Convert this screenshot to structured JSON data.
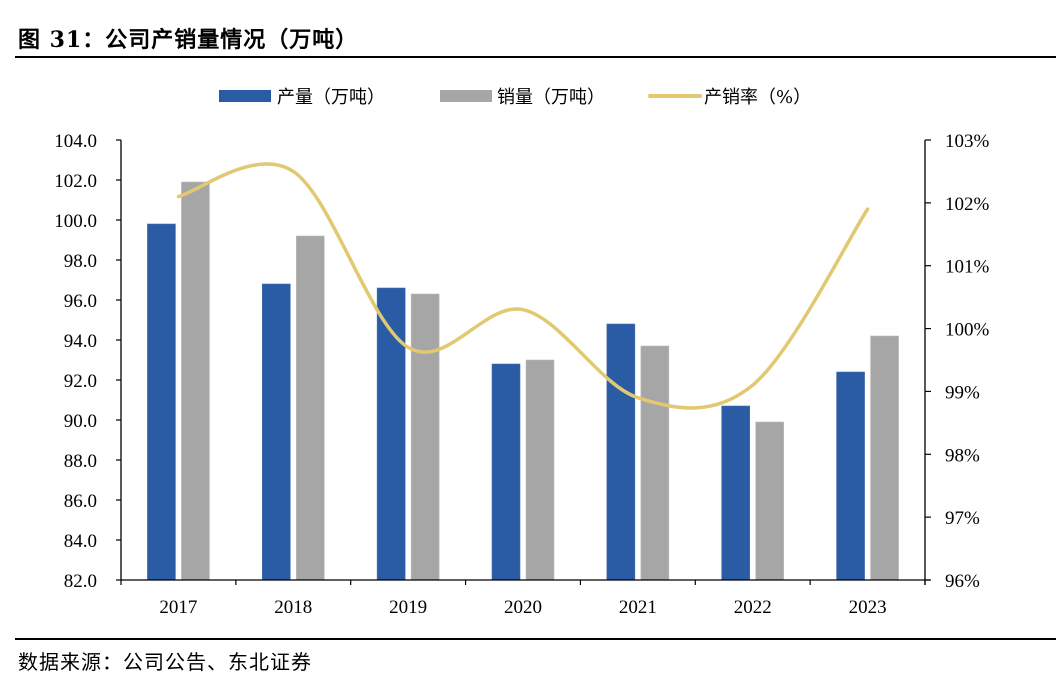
{
  "header": {
    "title": "图 31：公司产销量情况（万吨）"
  },
  "footer": {
    "source": "数据来源：公司公告、东北证券"
  },
  "colors": {
    "production": "#2A5BA5",
    "sales": "#A6A6A6",
    "ratio": "#E2C871"
  },
  "chart_data": {
    "type": "bar",
    "title": "公司产销量情况（万吨）",
    "categories": [
      "2017",
      "2018",
      "2019",
      "2020",
      "2021",
      "2022",
      "2023"
    ],
    "series": [
      {
        "name": "产量（万吨）",
        "type": "bar",
        "axis": "left",
        "values": [
          99.8,
          96.8,
          96.6,
          92.8,
          94.8,
          90.7,
          92.4
        ]
      },
      {
        "name": "销量（万吨）",
        "type": "bar",
        "axis": "left",
        "values": [
          101.9,
          99.2,
          96.3,
          93.0,
          93.7,
          89.9,
          94.2
        ]
      },
      {
        "name": "产销率（%）",
        "type": "line",
        "axis": "right",
        "values": [
          102.1,
          102.5,
          99.7,
          100.3,
          98.9,
          99.1,
          101.9
        ]
      }
    ],
    "left_axis": {
      "label": "",
      "ylim": [
        82.0,
        104.0
      ],
      "ticks": [
        "82.0",
        "84.0",
        "86.0",
        "88.0",
        "90.0",
        "92.0",
        "94.0",
        "96.0",
        "98.0",
        "100.0",
        "102.0",
        "104.0"
      ]
    },
    "right_axis": {
      "label": "",
      "ylim": [
        96,
        103
      ],
      "ticks": [
        "96%",
        "97%",
        "98%",
        "99%",
        "100%",
        "101%",
        "102%",
        "103%"
      ]
    },
    "xlabel": "",
    "grid": false,
    "legend_position": "top-center"
  }
}
